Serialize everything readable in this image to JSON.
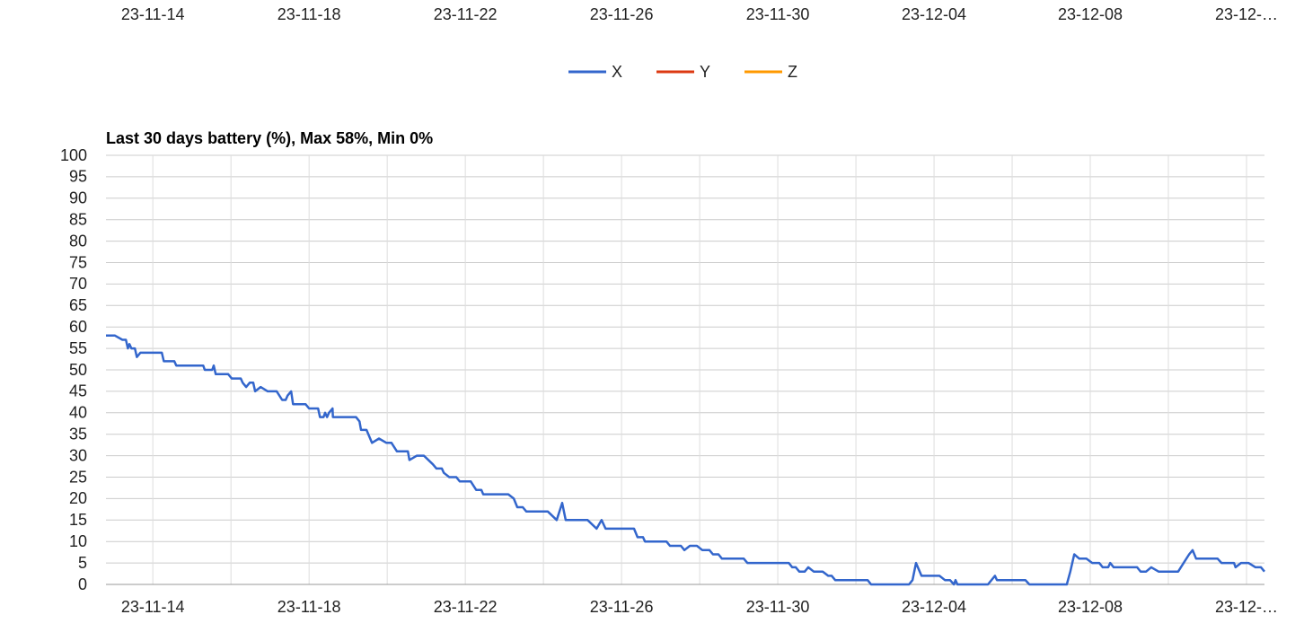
{
  "chart_data": [
    {
      "type": "line",
      "xlim": [
        -1.2,
        28.46
      ],
      "xticks": [
        {
          "value": 0,
          "label": "23-11-14"
        },
        {
          "value": 4,
          "label": "23-11-18"
        },
        {
          "value": 8,
          "label": "23-11-22"
        },
        {
          "value": 12,
          "label": "23-11-26"
        },
        {
          "value": 16,
          "label": "23-11-30"
        },
        {
          "value": 20,
          "label": "23-12-04"
        },
        {
          "value": 24,
          "label": "23-12-08"
        },
        {
          "value": 28,
          "label": "23-12-…"
        }
      ],
      "series": [
        {
          "name": "X",
          "color": "#3366cc"
        },
        {
          "name": "Y",
          "color": "#dc3912"
        },
        {
          "name": "Z",
          "color": "#ff9900"
        }
      ],
      "legend": "top"
    },
    {
      "type": "line",
      "title": "Last 30 days battery (%), Max 58%, Min 0%",
      "color": "#3366cc",
      "x": [
        -1.2,
        -0.97,
        -0.78,
        -0.69,
        -0.64,
        -0.6,
        -0.55,
        -0.46,
        -0.41,
        -0.32,
        -0.23,
        0.23,
        0.28,
        0.55,
        0.6,
        1.29,
        1.33,
        1.52,
        1.56,
        1.61,
        1.93,
        2.02,
        2.25,
        2.3,
        2.39,
        2.48,
        2.57,
        2.62,
        2.76,
        2.94,
        3.17,
        3.31,
        3.4,
        3.45,
        3.54,
        3.59,
        3.91,
        4,
        4.23,
        4.28,
        4.37,
        4.41,
        4.46,
        4.51,
        4.6,
        4.61,
        5.2,
        5.29,
        5.33,
        5.47,
        5.61,
        5.79,
        5.98,
        6.11,
        6.25,
        6.53,
        6.57,
        6.76,
        6.94,
        7.17,
        7.26,
        7.4,
        7.45,
        7.59,
        7.77,
        7.86,
        8.14,
        8.28,
        8.41,
        8.46,
        9.1,
        9.24,
        9.33,
        9.47,
        9.56,
        10.11,
        10.34,
        10.48,
        10.57,
        11.13,
        11.36,
        11.49,
        11.59,
        12.32,
        12.41,
        12.55,
        12.6,
        13.15,
        13.24,
        13.52,
        13.61,
        13.75,
        13.93,
        14.07,
        14.25,
        14.34,
        14.48,
        14.57,
        15.13,
        15.22,
        16.28,
        16.37,
        16.46,
        16.55,
        16.69,
        16.78,
        16.92,
        17.15,
        17.29,
        17.38,
        17.47,
        18.3,
        18.39,
        19.36,
        19.45,
        19.54,
        19.68,
        20.14,
        20.28,
        20.41,
        20.51,
        20.55,
        20.6,
        21.38,
        21.56,
        21.61,
        22.34,
        22.44,
        23.4,
        23.49,
        23.59,
        23.72,
        23.9,
        24.05,
        24.23,
        24.32,
        24.46,
        24.51,
        24.6,
        25.2,
        25.29,
        25.43,
        25.56,
        25.75,
        26.25,
        26.39,
        26.53,
        26.62,
        26.71,
        27.26,
        27.36,
        27.68,
        27.72,
        27.86,
        28.05,
        28.23,
        28.37,
        28.46
      ],
      "values": [
        58,
        58,
        57,
        57,
        55,
        56,
        55,
        55,
        53,
        54,
        54,
        54,
        52,
        52,
        51,
        51,
        50,
        50,
        51,
        49,
        49,
        48,
        48,
        47,
        46,
        47,
        47,
        45,
        46,
        45,
        45,
        43,
        43,
        44,
        45,
        42,
        42,
        41,
        41,
        39,
        39,
        40,
        39,
        40,
        41,
        39,
        39,
        38,
        36,
        36,
        33,
        34,
        33,
        33,
        31,
        31,
        29,
        30,
        30,
        28,
        27,
        27,
        26,
        25,
        25,
        24,
        24,
        22,
        22,
        21,
        21,
        20,
        18,
        18,
        17,
        17,
        15,
        19,
        15,
        15,
        13,
        15,
        13,
        13,
        11,
        11,
        10,
        10,
        9,
        9,
        8,
        9,
        9,
        8,
        8,
        7,
        7,
        6,
        6,
        5,
        5,
        4,
        4,
        3,
        3,
        4,
        3,
        3,
        2,
        2,
        1,
        1,
        0,
        0,
        1,
        5,
        2,
        2,
        1,
        1,
        0,
        1,
        0,
        0,
        2,
        1,
        1,
        0,
        0,
        3,
        7,
        6,
        6,
        5,
        5,
        4,
        4,
        5,
        4,
        4,
        3,
        3,
        4,
        3,
        3,
        5,
        7,
        8,
        6,
        6,
        5,
        5,
        4,
        5,
        5,
        4,
        4,
        3
      ],
      "xlim": [
        -1.2,
        28.46
      ],
      "xticks": [
        {
          "value": 0,
          "label": "23-11-14"
        },
        {
          "value": 4,
          "label": "23-11-18"
        },
        {
          "value": 8,
          "label": "23-11-22"
        },
        {
          "value": 12,
          "label": "23-11-26"
        },
        {
          "value": 16,
          "label": "23-11-30"
        },
        {
          "value": 20,
          "label": "23-12-04"
        },
        {
          "value": 24,
          "label": "23-12-08"
        },
        {
          "value": 28,
          "label": "23-12-…"
        }
      ],
      "x_minor_ticks": [
        2,
        6,
        10,
        14,
        18,
        22,
        26
      ],
      "ylim": [
        0,
        100
      ],
      "yticks": [
        0,
        5,
        10,
        15,
        20,
        25,
        30,
        35,
        40,
        45,
        50,
        55,
        60,
        65,
        70,
        75,
        80,
        85,
        90,
        95,
        100
      ],
      "grid": true
    }
  ]
}
